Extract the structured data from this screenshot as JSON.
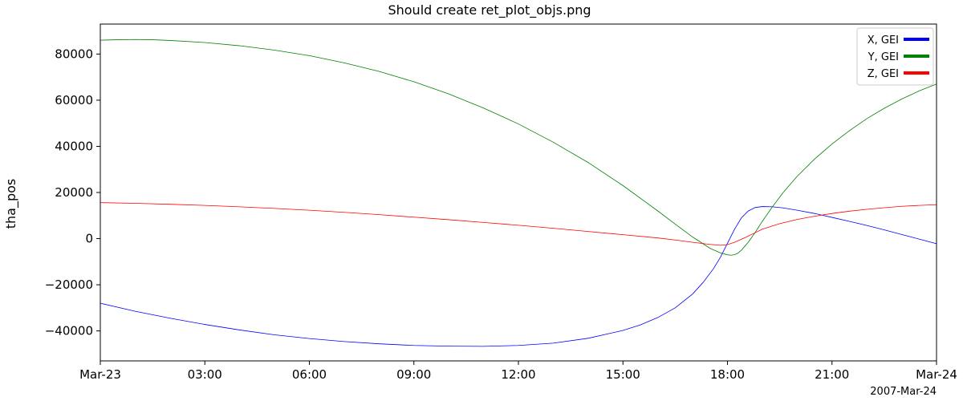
{
  "chart_data": {
    "type": "line",
    "title": "Should create ret_plot_objs.png",
    "ylabel": "tha_pos",
    "xlabel": "",
    "date_label": "2007-Mar-24",
    "xlim": [
      0,
      24
    ],
    "ylim": [
      -53000,
      93000
    ],
    "x_ticks": [
      0,
      3,
      6,
      9,
      12,
      15,
      18,
      21,
      24
    ],
    "x_tick_labels": [
      "Mar-23",
      "03:00",
      "06:00",
      "09:00",
      "12:00",
      "15:00",
      "18:00",
      "21:00",
      "Mar-24"
    ],
    "y_ticks": [
      -40000,
      -20000,
      0,
      20000,
      40000,
      60000,
      80000
    ],
    "y_tick_labels": [
      "−40000",
      "−20000",
      "0",
      "20000",
      "40000",
      "60000",
      "80000"
    ],
    "legend_position": "top-right",
    "series": [
      {
        "name": "X, GEI",
        "color": "#0000ff",
        "x": [
          0,
          1,
          2,
          3,
          4,
          5,
          6,
          7,
          8,
          9,
          10,
          11,
          12,
          13,
          14,
          15,
          15.5,
          16,
          16.5,
          17,
          17.3,
          17.6,
          17.8,
          18,
          18.2,
          18.4,
          18.6,
          18.8,
          19,
          19.3,
          19.6,
          20,
          20.5,
          21,
          21.5,
          22,
          22.5,
          23,
          23.5,
          24
        ],
        "y": [
          -28000,
          -31500,
          -34500,
          -37200,
          -39600,
          -41700,
          -43300,
          -44600,
          -45600,
          -46300,
          -46600,
          -46700,
          -46300,
          -45300,
          -43200,
          -39800,
          -37400,
          -34200,
          -30000,
          -24000,
          -19000,
          -13000,
          -8000,
          -2000,
          4000,
          9000,
          12000,
          13500,
          13900,
          13800,
          13300,
          12300,
          10900,
          9200,
          7500,
          5700,
          3800,
          1800,
          -200,
          -2200
        ]
      },
      {
        "name": "Y, GEI",
        "color": "#008000",
        "x": [
          0,
          0.5,
          1,
          1.5,
          2,
          3,
          4,
          5,
          6,
          7,
          8,
          9,
          10,
          11,
          12,
          13,
          14,
          15,
          16,
          16.5,
          17,
          17.5,
          17.8,
          18,
          18.1,
          18.2,
          18.3,
          18.4,
          18.6,
          18.8,
          19,
          19.3,
          19.6,
          20,
          20.5,
          21,
          21.5,
          22,
          22.5,
          23,
          23.5,
          24
        ],
        "y": [
          86000,
          86200,
          86300,
          86200,
          85900,
          85000,
          83600,
          81700,
          79300,
          76200,
          72500,
          68000,
          62700,
          56600,
          49700,
          41800,
          33000,
          23000,
          12000,
          6300,
          700,
          -4200,
          -6200,
          -7000,
          -7200,
          -7000,
          -6300,
          -5000,
          -1500,
          2800,
          7500,
          14000,
          20000,
          27000,
          34500,
          41000,
          46800,
          52000,
          56500,
          60500,
          64000,
          67000
        ]
      },
      {
        "name": "Z, GEI",
        "color": "#ff0000",
        "x": [
          0,
          1,
          2,
          3,
          4,
          5,
          6,
          7,
          8,
          9,
          10,
          11,
          12,
          13,
          14,
          15,
          16,
          16.5,
          17,
          17.5,
          17.8,
          18,
          18.2,
          18.5,
          18.8,
          19,
          19.5,
          20,
          20.5,
          21,
          21.5,
          22,
          22.5,
          23,
          23.5,
          24
        ],
        "y": [
          15600,
          15300,
          14900,
          14400,
          13800,
          13100,
          12300,
          11400,
          10400,
          9300,
          8200,
          7000,
          5800,
          4500,
          3100,
          1700,
          300,
          -600,
          -1600,
          -2500,
          -2900,
          -2600,
          -1600,
          400,
          2600,
          4100,
          6500,
          8300,
          9700,
          10900,
          11900,
          12700,
          13400,
          14000,
          14400,
          14700
        ]
      }
    ]
  }
}
